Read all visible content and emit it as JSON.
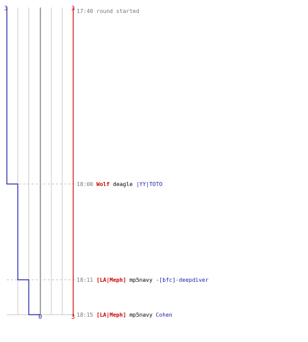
{
  "scores": {
    "blue_top": "3",
    "red_top": "3",
    "blue_bottom": "0",
    "red_bottom": "3"
  },
  "colors": {
    "blue_team": "#1a1aaa",
    "red_team": "#cc0000",
    "grid": "#c8c8c8",
    "zero_line": "#808080",
    "dashed": "#c0c0c0",
    "time_text": "#777777",
    "weapon_text": "#000000",
    "blue_name": "#1a1aaa",
    "red_name": "#cc0000"
  },
  "timeline": [
    {
      "time": "17:40",
      "text": "round started",
      "killer": "",
      "weapon": "",
      "victim": "",
      "blue_alive": 3,
      "red_alive": 3
    },
    {
      "time": "18:00",
      "text": "",
      "killer": "Wolf",
      "killer_team": "red",
      "weapon": "deagle",
      "victim": "|YY|TOTO",
      "victim_team": "blue",
      "blue_alive": 2,
      "red_alive": 3
    },
    {
      "time": "18:11",
      "text": "",
      "killer": "[LA|Meph]",
      "killer_team": "red",
      "weapon": "mp5navy",
      "victim": "-[bfc]-deepdiver",
      "victim_team": "blue",
      "blue_alive": 1,
      "red_alive": 3
    },
    {
      "time": "18:15",
      "text": "",
      "killer": "[LA|Meph]",
      "killer_team": "red",
      "weapon": "mp5navy",
      "victim": "Cohen",
      "victim_team": "blue",
      "blue_alive": 0,
      "red_alive": 3
    }
  ]
}
